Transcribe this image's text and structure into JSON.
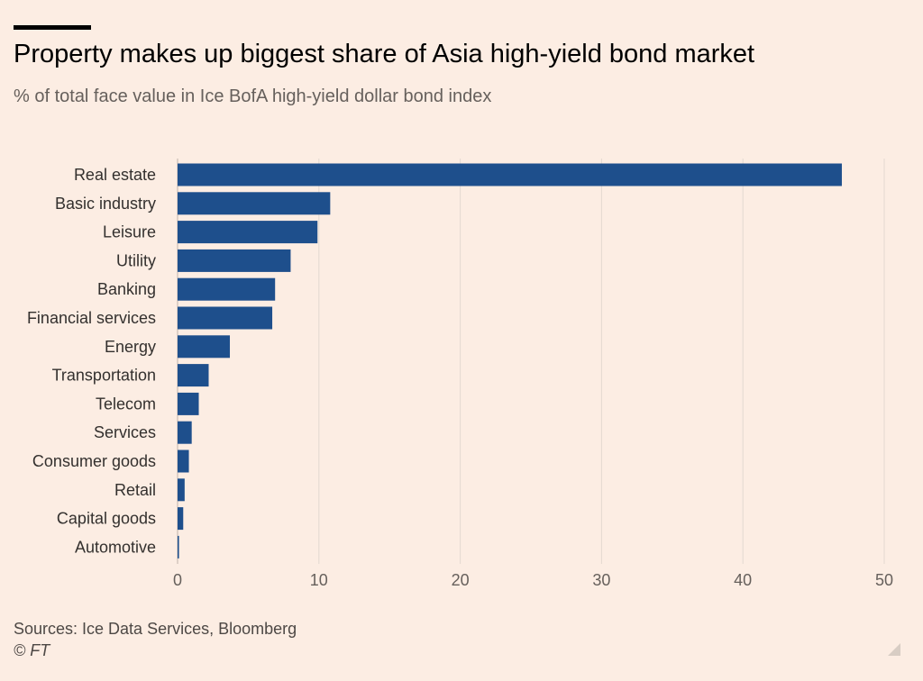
{
  "header": {
    "title": "Property makes up biggest share of Asia high-yield bond market",
    "subtitle": "% of total face value in Ice BofA high-yield dollar bond index"
  },
  "footer": {
    "source": "Sources: Ice Data Services, Bloomberg",
    "copyright": "© FT"
  },
  "colors": {
    "bar": "#1e4f8c",
    "grid": "#e3d9d1",
    "background": "#fcede3"
  },
  "chart_data": {
    "type": "bar",
    "orientation": "horizontal",
    "title": "Property makes up biggest share of Asia high-yield bond market",
    "subtitle": "% of total face value in Ice BofA high-yield dollar bond index",
    "xlabel": "",
    "ylabel": "",
    "xlim": [
      0,
      50
    ],
    "x_ticks": [
      "0",
      "10",
      "20",
      "30",
      "40",
      "50"
    ],
    "grid": true,
    "categories": [
      "Real estate",
      "Basic industry",
      "Leisure",
      "Utility",
      "Banking",
      "Financial services",
      "Energy",
      "Transportation",
      "Telecom",
      "Services",
      "Consumer goods",
      "Retail",
      "Capital goods",
      "Automotive"
    ],
    "values": [
      47.0,
      10.8,
      9.9,
      8.0,
      6.9,
      6.7,
      3.7,
      2.2,
      1.5,
      1.0,
      0.8,
      0.5,
      0.4,
      0.1
    ]
  }
}
